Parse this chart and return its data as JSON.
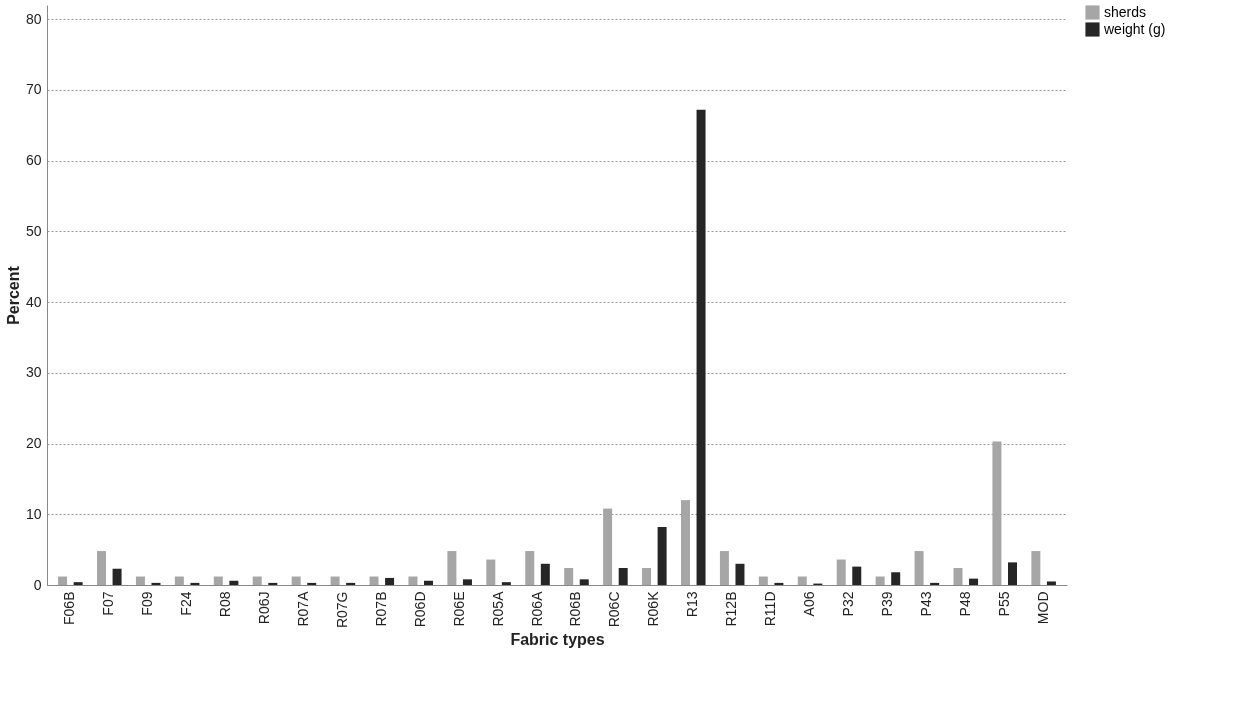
{
  "chart_data": {
    "type": "bar",
    "xlabel": "Fabric types",
    "ylabel": "Percent",
    "categories": [
      "F06B",
      "F07",
      "F09",
      "F24",
      "R08",
      "R06J",
      "R07A",
      "R07G",
      "R07B",
      "R06D",
      "R06E",
      "R05A",
      "R06A",
      "R06B",
      "R06C",
      "R06K",
      "R13",
      "R12B",
      "R11D",
      "A06",
      "P32",
      "P39",
      "P43",
      "P48",
      "P55",
      "MOD"
    ],
    "series": [
      {
        "name": "sherds",
        "color": "#a6a6a6",
        "values": [
          1.2,
          4.8,
          1.2,
          1.2,
          1.2,
          1.2,
          1.2,
          1.2,
          1.2,
          1.2,
          4.8,
          3.6,
          4.8,
          2.4,
          10.8,
          2.4,
          12.0,
          4.8,
          1.2,
          1.2,
          3.6,
          1.2,
          4.8,
          2.4,
          20.3,
          4.8
        ]
      },
      {
        "name": "weight (g)",
        "color": "#262626",
        "values": [
          0.4,
          2.3,
          0.3,
          0.3,
          0.6,
          0.3,
          0.3,
          0.3,
          1.0,
          0.6,
          0.8,
          0.4,
          3.0,
          0.8,
          2.4,
          8.2,
          67.2,
          3.0,
          0.3,
          0.2,
          2.6,
          1.8,
          0.3,
          0.9,
          3.2,
          0.5
        ]
      }
    ],
    "ylim": [
      0,
      82
    ],
    "yticks": [
      0,
      10,
      20,
      30,
      40,
      50,
      60,
      70,
      80
    ],
    "grid": "y",
    "legend": "right"
  }
}
